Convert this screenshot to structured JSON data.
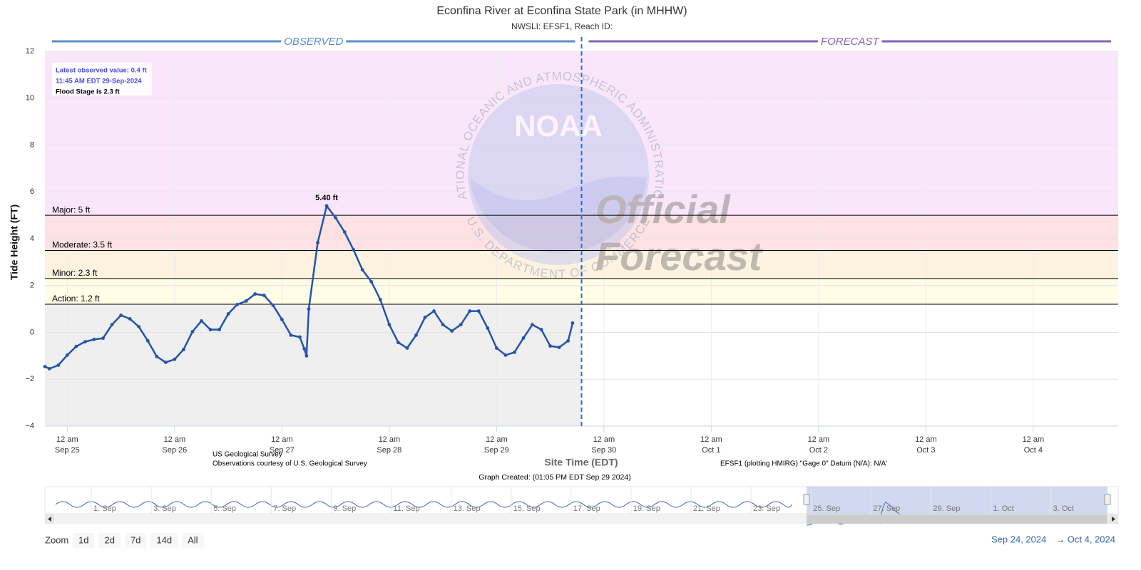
{
  "chart_data": {
    "type": "line",
    "title": "Econfina River at Econfina State Park (in MHHW)",
    "subtitle": "NWSLI: EFSF1, Reach ID:",
    "y_label": "Tide Height (FT)",
    "x_label": "Site Time (EDT)",
    "x": [
      "2024-09-24T19:00",
      "2024-09-24T20:00",
      "2024-09-24T22:00",
      "2024-09-25T00:00",
      "2024-09-25T02:00",
      "2024-09-25T04:00",
      "2024-09-25T06:00",
      "2024-09-25T08:00",
      "2024-09-25T10:00",
      "2024-09-25T12:00",
      "2024-09-25T14:00",
      "2024-09-25T16:00",
      "2024-09-25T18:00",
      "2024-09-25T20:00",
      "2024-09-25T22:00",
      "2024-09-26T00:00",
      "2024-09-26T02:00",
      "2024-09-26T04:00",
      "2024-09-26T06:00",
      "2024-09-26T08:00",
      "2024-09-26T10:00",
      "2024-09-26T12:00",
      "2024-09-26T14:00",
      "2024-09-26T16:00",
      "2024-09-26T18:00",
      "2024-09-26T20:00",
      "2024-09-26T22:00",
      "2024-09-27T00:00",
      "2024-09-27T02:00",
      "2024-09-27T04:00",
      "2024-09-27T05:00",
      "2024-09-27T05:30",
      "2024-09-27T06:00",
      "2024-09-27T08:00",
      "2024-09-27T10:00",
      "2024-09-27T12:00",
      "2024-09-27T14:00",
      "2024-09-27T16:00",
      "2024-09-27T18:00",
      "2024-09-27T20:00",
      "2024-09-27T22:00",
      "2024-09-28T00:00",
      "2024-09-28T02:00",
      "2024-09-28T04:00",
      "2024-09-28T06:00",
      "2024-09-28T08:00",
      "2024-09-28T10:00",
      "2024-09-28T12:00",
      "2024-09-28T14:00",
      "2024-09-28T16:00",
      "2024-09-28T18:00",
      "2024-09-28T20:00",
      "2024-09-28T22:00",
      "2024-09-29T00:00",
      "2024-09-29T02:00",
      "2024-09-29T04:00",
      "2024-09-29T06:00",
      "2024-09-29T08:00",
      "2024-09-29T10:00",
      "2024-09-29T12:00",
      "2024-09-29T14:00",
      "2024-09-29T16:00",
      "2024-09-29T17:00"
    ],
    "series": [
      {
        "color": "#2255aa",
        "values": [
          -1.46,
          -1.55,
          -1.4,
          -0.97,
          -0.6,
          -0.4,
          -0.3,
          -0.25,
          0.33,
          0.73,
          0.58,
          0.24,
          -0.36,
          -1.03,
          -1.28,
          -1.15,
          -0.73,
          0.03,
          0.49,
          0.12,
          0.12,
          0.79,
          1.19,
          1.34,
          1.64,
          1.58,
          1.16,
          0.55,
          -0.12,
          -0.2,
          -0.7,
          -1.0,
          1.0,
          3.83,
          5.4,
          4.89,
          4.29,
          3.53,
          2.67,
          2.16,
          1.4,
          0.33,
          -0.43,
          -0.67,
          -0.12,
          0.64,
          0.91,
          0.33,
          0.06,
          0.33,
          0.91,
          0.91,
          0.18,
          -0.67,
          -0.97,
          -0.85,
          -0.24,
          0.33,
          0.12,
          -0.58,
          -0.64,
          -0.36,
          0.4
        ],
        "value_labels": [
          null,
          null,
          null,
          null,
          null,
          null,
          null,
          null,
          null,
          null,
          null,
          null,
          null,
          null,
          null,
          null,
          null,
          null,
          null,
          null,
          null,
          null,
          null,
          null,
          null,
          null,
          null,
          null,
          null,
          null,
          null,
          null,
          null,
          null,
          "5.40 ft",
          null,
          null,
          null,
          null,
          null,
          null,
          null,
          null,
          null,
          null,
          null,
          null,
          null,
          null,
          null,
          null,
          null,
          null,
          null,
          null,
          null,
          null,
          null,
          null,
          null,
          null,
          null,
          null
        ]
      }
    ],
    "xlim": [
      "2024-09-24T19:00",
      "2024-10-04T19:00"
    ],
    "xticks": [
      {
        "value": "2024-09-25T00:00",
        "label": [
          "12 am",
          "Sep 25"
        ]
      },
      {
        "value": "2024-09-26T00:00",
        "label": [
          "12 am",
          "Sep 26"
        ]
      },
      {
        "value": "2024-09-27T00:00",
        "label": [
          "12 am",
          "Sep 27"
        ]
      },
      {
        "value": "2024-09-28T00:00",
        "label": [
          "12 am",
          "Sep 28"
        ]
      },
      {
        "value": "2024-09-29T00:00",
        "label": [
          "12 am",
          "Sep 29"
        ]
      },
      {
        "value": "2024-09-30T00:00",
        "label": [
          "12 am",
          "Sep 30"
        ]
      },
      {
        "value": "2024-10-01T00:00",
        "label": [
          "12 am",
          "Oct 1"
        ]
      },
      {
        "value": "2024-10-02T00:00",
        "label": [
          "12 am",
          "Oct 2"
        ]
      },
      {
        "value": "2024-10-03T00:00",
        "label": [
          "12 am",
          "Oct 3"
        ]
      },
      {
        "value": "2024-10-04T00:00",
        "label": [
          "12 am",
          "Oct 4"
        ]
      }
    ],
    "ylim": [
      -4,
      12
    ],
    "yticks": [
      {
        "value": -4,
        "label": "−4"
      },
      {
        "value": -2,
        "label": "−2"
      },
      0,
      2,
      4,
      6,
      8,
      10,
      12
    ],
    "grid": true,
    "sections": {
      "observed": "OBSERVED",
      "observed_color": "#5b8bd0",
      "forecast": "FORECAST",
      "forecast_color": "#8a5fb0",
      "forecast_start": "2024-09-29T19:00"
    },
    "below_action_color": "#efefef",
    "thresholds": [
      {
        "label": "Action: 1.2 ft",
        "value": 1.2,
        "color": "#fffde6"
      },
      {
        "label": "Minor: 2.3 ft",
        "value": 2.3,
        "color": "#fdf2e0"
      },
      {
        "label": "Moderate: 3.5 ft",
        "value": 3.5,
        "color": "#fde1e3"
      },
      {
        "label": "Major: 5 ft",
        "value": 5,
        "color": "#fae6fb"
      }
    ],
    "info": [
      "Latest observed value: 0.4 ft",
      "11:45 AM EDT 29-Sep-2024",
      "Flood Stage is 2.3 ft"
    ]
  },
  "watermark": {
    "logo": "NOAA",
    "ring_top": "NATIONAL OCEANIC AND ATMOSPHERIC ADMINISTRATION",
    "ring_bottom": "U.S. DEPARTMENT OF COMMERCE",
    "lines": [
      "Official",
      "Forecast"
    ]
  },
  "footer": {
    "source": "US Geological Survey",
    "courtesy": "Observations courtesy of U.S. Geological Survey",
    "datum": "EFSF1 (plotting HMIRG) \"Gage 0\" Datum (N/A): N/A'",
    "created": "Graph Created: (01:05 PM EDT Sep 29 2024)"
  },
  "navigator": {
    "labels": [
      "1. Sep",
      "3. Sep",
      "5. Sep",
      "7. Sep",
      "9. Sep",
      "11. Sep",
      "13. Sep",
      "15. Sep",
      "17. Sep",
      "19. Sep",
      "21. Sep",
      "23. Sep",
      "25. Sep",
      "27. Sep",
      "29. Sep",
      "1. Oct",
      "3. Oct"
    ]
  },
  "zoom": {
    "label": "Zoom",
    "buttons": [
      "1d",
      "2d",
      "7d",
      "14d",
      "All"
    ]
  },
  "range": {
    "from": "Sep 24, 2024",
    "arrow": "→",
    "to": "Oct 4, 2024"
  }
}
